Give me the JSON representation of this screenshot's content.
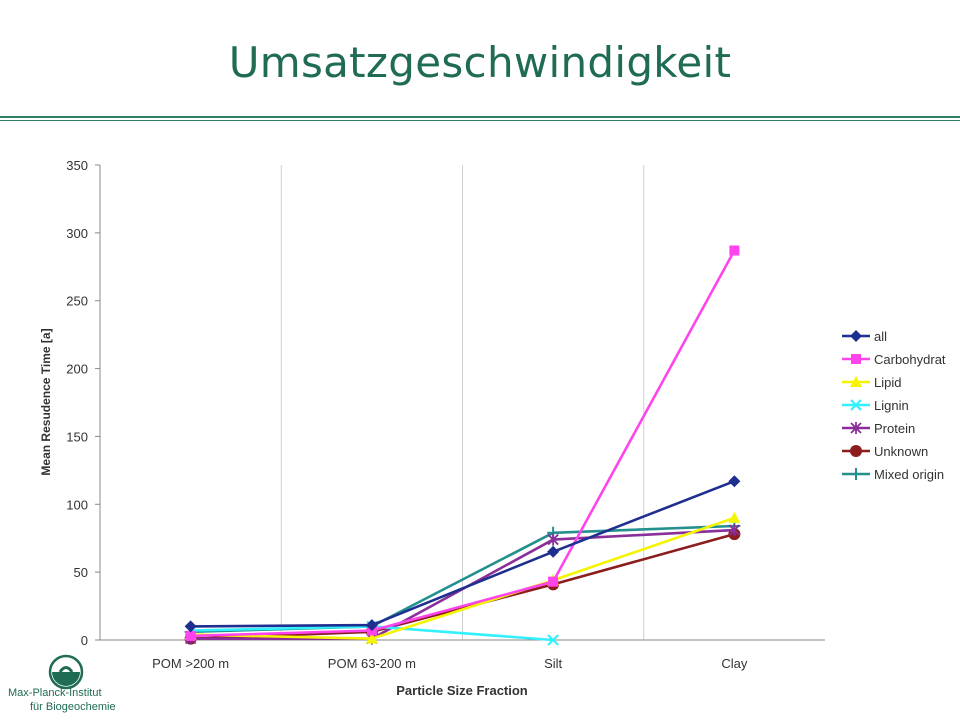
{
  "slide": {
    "title": "Umsatzgeschwindigkeit",
    "institute_line1": "Max-Planck-Institut",
    "institute_line2": "für Biogeochemie",
    "logo_icon": "minerva-logo-icon",
    "accent_color": "#1f6b55"
  },
  "chart_data": {
    "type": "line",
    "title": "",
    "xlabel": "Particle Size Fraction",
    "ylabel": "Mean Resudence Time [a]",
    "categories": [
      "POM >200  m",
      "POM 63-200  m",
      "Silt",
      "Clay"
    ],
    "ylim": [
      0,
      350
    ],
    "yticks": [
      0,
      50,
      100,
      150,
      200,
      250,
      300,
      350
    ],
    "grid": "vertical category separators",
    "legend": "right",
    "series": [
      {
        "name": "all",
        "color": "#1f2f8f",
        "marker": "diamond",
        "values": [
          10,
          11,
          65,
          117
        ]
      },
      {
        "name": "Carbohydrat",
        "color": "#ff44ee",
        "marker": "square",
        "values": [
          3,
          7,
          43,
          287
        ]
      },
      {
        "name": "Lipid",
        "color": "#f5f500",
        "marker": "triangle",
        "values": [
          4,
          1,
          44,
          90
        ]
      },
      {
        "name": "Lignin",
        "color": "#33f0ff",
        "marker": "x",
        "values": [
          7,
          10,
          0,
          null
        ]
      },
      {
        "name": "Protein",
        "color": "#8a2f9a",
        "marker": "star",
        "values": [
          1,
          1,
          74,
          81
        ]
      },
      {
        "name": "Unknown",
        "color": "#8b1d1d",
        "marker": "circle",
        "values": [
          1,
          6,
          41,
          78
        ]
      },
      {
        "name": "Mixed origin",
        "color": "#23908e",
        "marker": "plus",
        "values": [
          6,
          10,
          79,
          84
        ]
      }
    ]
  }
}
